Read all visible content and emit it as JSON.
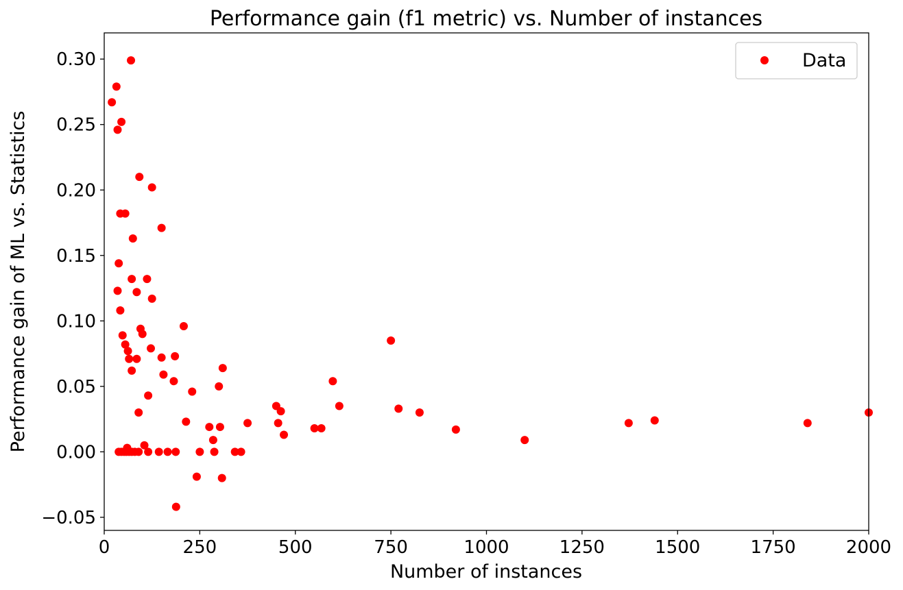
{
  "chart_data": {
    "type": "scatter",
    "title": "Performance gain (f1 metric) vs. Number of instances",
    "xlabel": "Number of instances",
    "ylabel": "Performance gain of ML vs. Statistics",
    "xlim": [
      0,
      2000
    ],
    "ylim": [
      -0.06,
      0.32
    ],
    "xticks": [
      0,
      250,
      500,
      750,
      1000,
      1250,
      1500,
      1750,
      2000
    ],
    "xtick_labels": [
      "0",
      "250",
      "500",
      "750",
      "1000",
      "1250",
      "1500",
      "1750",
      "2000"
    ],
    "yticks": [
      -0.05,
      0.0,
      0.05,
      0.1,
      0.15,
      0.2,
      0.25,
      0.3
    ],
    "ytick_labels": [
      "−0.05",
      "0.00",
      "0.05",
      "0.10",
      "0.15",
      "0.20",
      "0.25",
      "0.30"
    ],
    "grid": false,
    "legend_position": "top-right",
    "series": [
      {
        "name": "Data",
        "color": "#ff0000",
        "marker": "circle",
        "points": [
          [
            20,
            0.267
          ],
          [
            32,
            0.279
          ],
          [
            35,
            0.246
          ],
          [
            45,
            0.252
          ],
          [
            70,
            0.299
          ],
          [
            42,
            0.182
          ],
          [
            55,
            0.182
          ],
          [
            92,
            0.21
          ],
          [
            125,
            0.202
          ],
          [
            150,
            0.171
          ],
          [
            75,
            0.163
          ],
          [
            38,
            0.144
          ],
          [
            72,
            0.132
          ],
          [
            112,
            0.132
          ],
          [
            35,
            0.123
          ],
          [
            85,
            0.122
          ],
          [
            125,
            0.117
          ],
          [
            42,
            0.108
          ],
          [
            208,
            0.096
          ],
          [
            95,
            0.094
          ],
          [
            100,
            0.09
          ],
          [
            48,
            0.089
          ],
          [
            55,
            0.082
          ],
          [
            750,
            0.085
          ],
          [
            122,
            0.079
          ],
          [
            62,
            0.077
          ],
          [
            65,
            0.071
          ],
          [
            85,
            0.071
          ],
          [
            150,
            0.072
          ],
          [
            185,
            0.073
          ],
          [
            72,
            0.062
          ],
          [
            310,
            0.064
          ],
          [
            155,
            0.059
          ],
          [
            182,
            0.054
          ],
          [
            598,
            0.054
          ],
          [
            300,
            0.05
          ],
          [
            230,
            0.046
          ],
          [
            115,
            0.043
          ],
          [
            450,
            0.035
          ],
          [
            615,
            0.035
          ],
          [
            462,
            0.031
          ],
          [
            770,
            0.033
          ],
          [
            825,
            0.03
          ],
          [
            90,
            0.03
          ],
          [
            2000,
            0.03
          ],
          [
            1440,
            0.024
          ],
          [
            214,
            0.023
          ],
          [
            455,
            0.022
          ],
          [
            375,
            0.022
          ],
          [
            1372,
            0.022
          ],
          [
            1840,
            0.022
          ],
          [
            275,
            0.019
          ],
          [
            303,
            0.019
          ],
          [
            550,
            0.018
          ],
          [
            568,
            0.018
          ],
          [
            920,
            0.017
          ],
          [
            470,
            0.013
          ],
          [
            1100,
            0.009
          ],
          [
            285,
            0.009
          ],
          [
            105,
            0.005
          ],
          [
            60,
            0.003
          ],
          [
            38,
            0.0
          ],
          [
            45,
            0.0
          ],
          [
            52,
            0.0
          ],
          [
            58,
            0.0
          ],
          [
            65,
            0.0
          ],
          [
            72,
            0.0
          ],
          [
            80,
            0.0
          ],
          [
            90,
            0.0
          ],
          [
            115,
            0.0
          ],
          [
            143,
            0.0
          ],
          [
            166,
            0.0
          ],
          [
            187,
            0.0
          ],
          [
            250,
            0.0
          ],
          [
            288,
            0.0
          ],
          [
            342,
            0.0
          ],
          [
            358,
            0.0
          ],
          [
            242,
            -0.019
          ],
          [
            308,
            -0.02
          ],
          [
            188,
            -0.042
          ]
        ]
      }
    ]
  }
}
